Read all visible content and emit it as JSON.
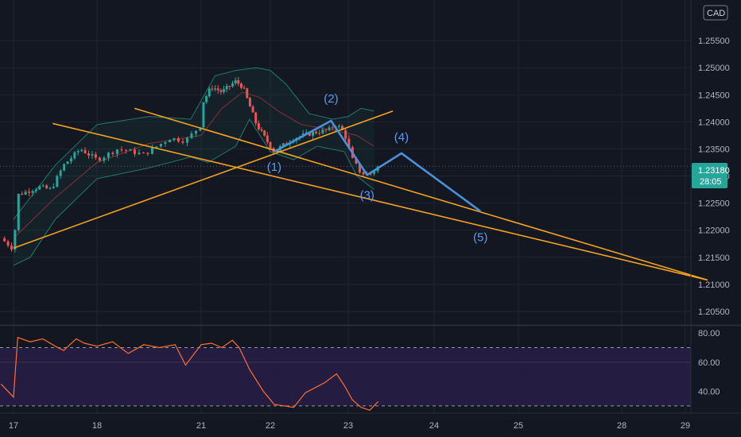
{
  "symbol_currency": "CAD",
  "colors": {
    "background": "#131722",
    "grid": "#1f2430",
    "up": "#26a69a",
    "down": "#ef5350",
    "trendline": "#f6a21e",
    "wave": "#4a90d9",
    "bollinger": "#1f7a6e",
    "basis": "#8b2f35",
    "rsi": "#ff6d2e",
    "rsi_band": "#2a1f4a"
  },
  "price_badge": {
    "price": "1.23180",
    "countdown": "28:05",
    "price_value": 1.2318
  },
  "chart_data": {
    "type": "candlestick",
    "x_axis": {
      "ticks": [
        {
          "label": "17",
          "day": 0
        },
        {
          "label": "18",
          "day": 1
        },
        {
          "label": "21",
          "day": 2
        },
        {
          "label": "22",
          "day": 3
        },
        {
          "label": "23",
          "day": 4
        },
        {
          "label": "24",
          "day": 5
        },
        {
          "label": "25",
          "day": 6
        },
        {
          "label": "28",
          "day": 7
        },
        {
          "label": "29",
          "day": 8
        }
      ]
    },
    "y_axis": {
      "ylim": [
        1.2025,
        1.2625
      ],
      "ticks": [
        "1.20500",
        "1.21000",
        "1.21500",
        "1.22000",
        "1.22500",
        "1.23000",
        "1.23500",
        "1.24000",
        "1.24500",
        "1.25000",
        "1.25500"
      ]
    },
    "price_path": [
      [
        -0.15,
        1.2185
      ],
      [
        0.0,
        1.2165
      ],
      [
        0.05,
        1.2265
      ],
      [
        0.3,
        1.228
      ],
      [
        0.45,
        1.2275
      ],
      [
        0.6,
        1.232
      ],
      [
        0.8,
        1.235
      ],
      [
        1.0,
        1.233
      ],
      [
        1.2,
        1.235
      ],
      [
        1.45,
        1.234
      ],
      [
        1.7,
        1.237
      ],
      [
        1.85,
        1.2365
      ],
      [
        2.0,
        1.2395
      ],
      [
        2.02,
        1.2435
      ],
      [
        2.15,
        1.2465
      ],
      [
        2.3,
        1.2455
      ],
      [
        2.5,
        1.2475
      ],
      [
        2.6,
        1.2465
      ],
      [
        2.8,
        1.2395
      ],
      [
        3.05,
        1.2345
      ],
      [
        3.3,
        1.237
      ],
      [
        3.55,
        1.238
      ],
      [
        3.75,
        1.2385
      ],
      [
        3.85,
        1.2395
      ],
      [
        3.95,
        1.238
      ],
      [
        4.05,
        1.233
      ],
      [
        4.15,
        1.2305
      ],
      [
        4.25,
        1.2303
      ],
      [
        4.35,
        1.2318
      ]
    ],
    "bollinger": {
      "upper": [
        [
          0.0,
          1.222
        ],
        [
          0.5,
          1.232
        ],
        [
          1.0,
          1.2395
        ],
        [
          1.5,
          1.241
        ],
        [
          1.9,
          1.2405
        ],
        [
          2.2,
          1.2485
        ],
        [
          2.5,
          1.2495
        ],
        [
          2.8,
          1.25
        ],
        [
          3.0,
          1.2495
        ],
        [
          3.2,
          1.247
        ],
        [
          3.5,
          1.2415
        ],
        [
          3.8,
          1.2405
        ],
        [
          4.0,
          1.241
        ],
        [
          4.15,
          1.2425
        ],
        [
          4.3,
          1.242
        ]
      ],
      "lower": [
        [
          0.0,
          1.2135
        ],
        [
          0.2,
          1.215
        ],
        [
          0.5,
          1.222
        ],
        [
          1.0,
          1.2295
        ],
        [
          1.5,
          1.2315
        ],
        [
          1.9,
          1.2335
        ],
        [
          2.1,
          1.2325
        ],
        [
          2.5,
          1.2355
        ],
        [
          2.7,
          1.2405
        ],
        [
          3.0,
          1.2345
        ],
        [
          3.3,
          1.233
        ],
        [
          3.6,
          1.2355
        ],
        [
          3.95,
          1.2345
        ],
        [
          4.1,
          1.23
        ],
        [
          4.3,
          1.2275
        ]
      ],
      "basis": [
        [
          0.0,
          1.2185
        ],
        [
          0.5,
          1.226
        ],
        [
          1.0,
          1.2325
        ],
        [
          1.5,
          1.236
        ],
        [
          2.0,
          1.2375
        ],
        [
          2.3,
          1.2425
        ],
        [
          2.6,
          1.2455
        ],
        [
          2.85,
          1.2445
        ],
        [
          3.1,
          1.242
        ],
        [
          3.4,
          1.2395
        ],
        [
          3.8,
          1.2385
        ],
        [
          4.1,
          1.2375
        ],
        [
          4.3,
          1.2355
        ]
      ]
    },
    "trendlines": [
      {
        "from": [
          0.0,
          1.2167
        ],
        "to": [
          4.52,
          1.242
        ]
      },
      {
        "from": [
          1.36,
          1.2425
        ],
        "to": [
          8.35,
          1.2108
        ]
      },
      {
        "from": [
          0.47,
          1.2397
        ],
        "to": [
          8.35,
          1.2108
        ]
      }
    ],
    "wave_path": [
      [
        3.05,
        1.2345
      ],
      [
        3.78,
        1.2402
      ],
      [
        4.22,
        1.2302
      ],
      [
        4.62,
        1.2342
      ],
      [
        5.55,
        1.2235
      ]
    ],
    "wave_labels": [
      {
        "label": "(1)",
        "day": 3.05,
        "price": 1.2317
      },
      {
        "label": "(2)",
        "day": 3.78,
        "price": 1.2443
      },
      {
        "label": "(3)",
        "day": 4.22,
        "price": 1.2265
      },
      {
        "label": "(4)",
        "day": 4.62,
        "price": 1.2372
      },
      {
        "label": "(5)",
        "day": 5.55,
        "price": 1.2187
      }
    ],
    "rsi": {
      "ylim": [
        25,
        85
      ],
      "ticks": [
        "80.00",
        "60.00",
        "40.00"
      ],
      "upper_band": 70,
      "lower_band": 30,
      "mid_line": 60,
      "values": [
        [
          -0.15,
          45
        ],
        [
          0.0,
          36
        ],
        [
          0.05,
          77
        ],
        [
          0.2,
          74
        ],
        [
          0.35,
          76
        ],
        [
          0.5,
          71
        ],
        [
          0.6,
          68
        ],
        [
          0.75,
          76
        ],
        [
          0.85,
          73
        ],
        [
          1.0,
          71
        ],
        [
          1.15,
          74
        ],
        [
          1.3,
          66
        ],
        [
          1.45,
          72
        ],
        [
          1.6,
          70
        ],
        [
          1.75,
          72
        ],
        [
          1.85,
          58
        ],
        [
          2.0,
          72
        ],
        [
          2.15,
          73
        ],
        [
          2.3,
          70
        ],
        [
          2.45,
          75
        ],
        [
          2.55,
          70
        ],
        [
          2.7,
          55
        ],
        [
          2.9,
          40
        ],
        [
          3.05,
          31
        ],
        [
          3.3,
          29
        ],
        [
          3.45,
          39
        ],
        [
          3.7,
          46
        ],
        [
          3.85,
          52
        ],
        [
          3.95,
          44
        ],
        [
          4.05,
          34
        ],
        [
          4.15,
          29
        ],
        [
          4.25,
          27
        ],
        [
          4.35,
          33
        ]
      ]
    }
  }
}
